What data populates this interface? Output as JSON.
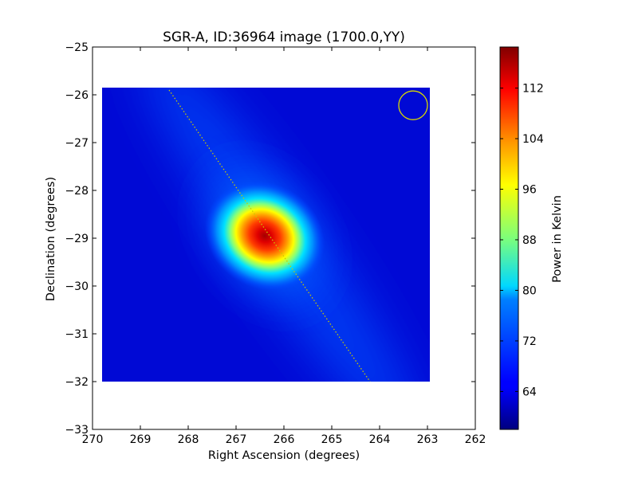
{
  "chart_data": {
    "type": "heatmap",
    "title": "SGR-A, ID:36964 image (1700.0,YY)",
    "xlabel": "Right Ascension (degrees)",
    "ylabel": "Declination (degrees)",
    "xlim": [
      270,
      262
    ],
    "ylim": [
      -33,
      -25
    ],
    "x_ticks": [
      270,
      269,
      268,
      267,
      266,
      265,
      264,
      263,
      262
    ],
    "y_ticks": [
      -25,
      -26,
      -27,
      -28,
      -29,
      -30,
      -31,
      -32,
      -33
    ],
    "image_extent": {
      "ra": [
        269.8,
        262.95
      ],
      "dec": [
        -32.0,
        -25.85
      ]
    },
    "source": {
      "ra": 266.4,
      "dec": -28.95,
      "peak_kelvin": 118
    },
    "background_kelvin": 60,
    "galactic_plane_line": {
      "start": {
        "ra": 268.4,
        "dec": -25.9
      },
      "end": {
        "ra": 264.2,
        "dec": -32.0
      },
      "color": "#c8c800"
    },
    "beam_circle": {
      "ra": 263.3,
      "dec": -26.22,
      "color": "#d8d800"
    },
    "colorbar": {
      "label": "Power in Kelvin",
      "range": [
        58,
        118.5
      ],
      "ticks": [
        64,
        72,
        80,
        88,
        96,
        104,
        112
      ],
      "colormap": "jet"
    },
    "grid": false
  }
}
